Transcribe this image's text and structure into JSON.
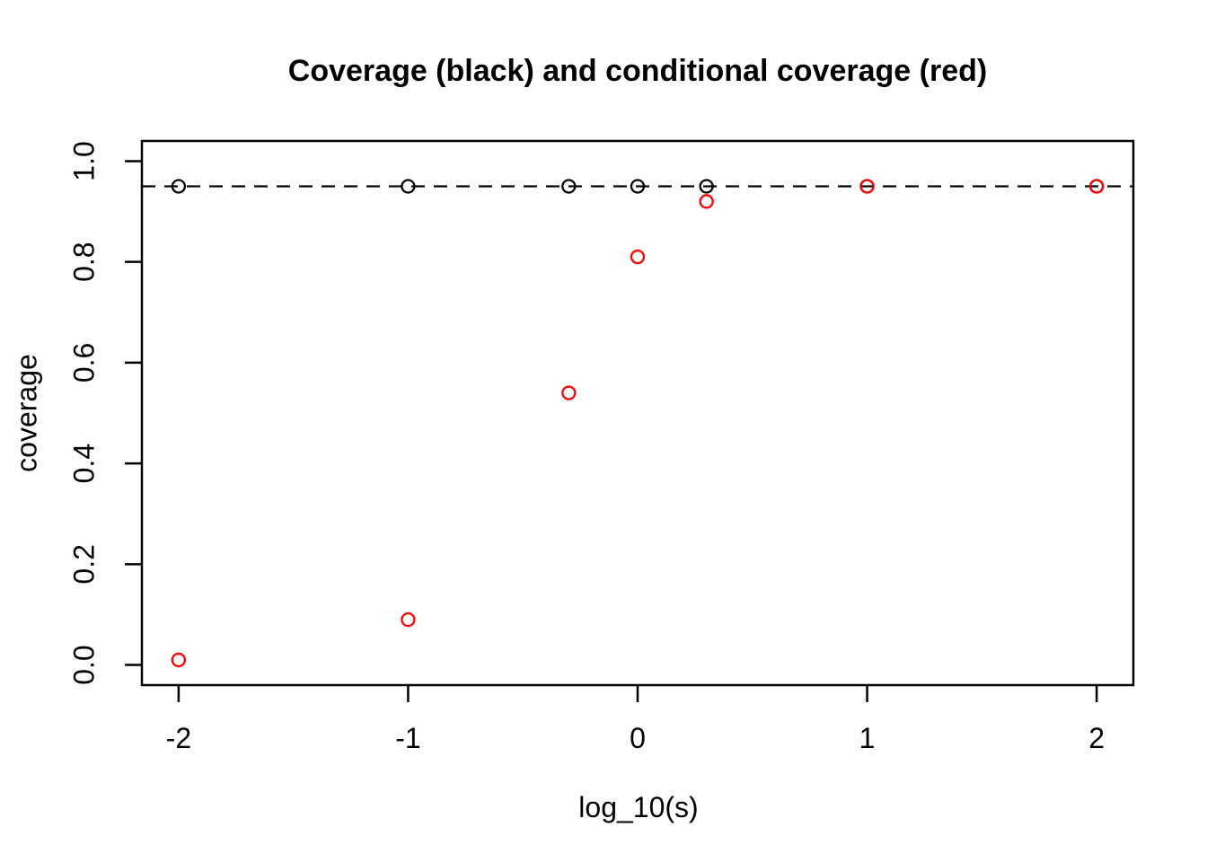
{
  "figure": {
    "background": "#FFFFFF",
    "text_color": "#000000"
  },
  "chart_data": {
    "type": "scatter",
    "title": "Coverage (black) and conditional coverage (red)",
    "xlabel": "log_10(s)",
    "ylabel": "coverage",
    "x": [
      -2,
      -1,
      -0.3,
      0,
      0.3,
      1,
      2
    ],
    "series": [
      {
        "name": "coverage",
        "color": "#000000",
        "marker": "open-circle",
        "values": [
          0.95,
          0.95,
          0.95,
          0.95,
          0.95,
          0.95,
          0.95
        ]
      },
      {
        "name": "conditional coverage",
        "color": "#FF0000",
        "marker": "open-circle",
        "values": [
          0.01,
          0.09,
          0.54,
          0.81,
          0.92,
          0.95,
          0.95
        ]
      }
    ],
    "reference_line": {
      "y": 0.95,
      "style": "dashed",
      "color": "#000000"
    },
    "axes": {
      "x_ticks": [
        -2,
        -1,
        0,
        1,
        2
      ],
      "x_tick_labels": [
        "-2",
        "-1",
        "0",
        "1",
        "2"
      ],
      "y_ticks": [
        0,
        0.2,
        0.4,
        0.6,
        0.8,
        1
      ],
      "y_tick_labels": [
        "0.0",
        "0.2",
        "0.4",
        "0.6",
        "0.8",
        "1.0"
      ],
      "xlim": [
        -2.16,
        2.16
      ],
      "ylim": [
        -0.04,
        1.04
      ],
      "grid": false
    },
    "legend_position": "none"
  }
}
